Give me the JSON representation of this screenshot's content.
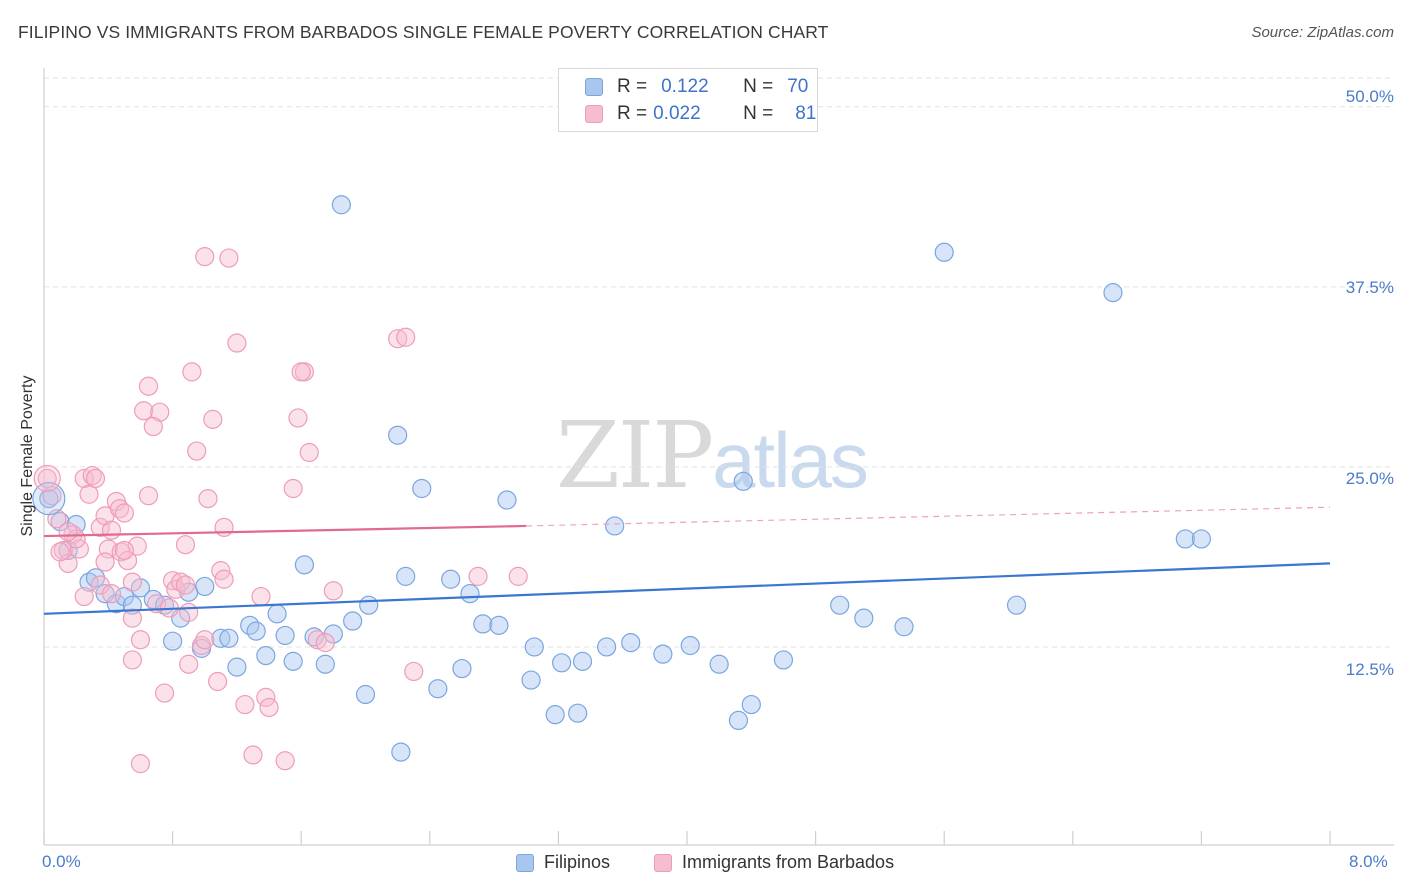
{
  "header": {
    "title": "FILIPINO VS IMMIGRANTS FROM BARBADOS SINGLE FEMALE POVERTY CORRELATION CHART",
    "source": "Source: ZipAtlas.com"
  },
  "watermark": {
    "zip": "ZIP",
    "atlas": "atlas"
  },
  "legend": {
    "rows": [
      {
        "r_label": "R =",
        "r_value": "0.122",
        "n_label": "N =",
        "n_value": "70",
        "color": "#a9c6ef"
      },
      {
        "r_label": "R =",
        "r_value": "0.022",
        "n_label": "N =",
        "n_value": "81",
        "color": "#f6bcd0"
      }
    ]
  },
  "bottom_legend": {
    "series1": "Filipinos",
    "series2": "Immigrants from Barbados"
  },
  "axes": {
    "ylabel": "Single Female Poverty",
    "yticks": [
      "50.0%",
      "37.5%",
      "25.0%",
      "12.5%"
    ],
    "xtick_left": "0.0%",
    "xtick_right": "8.0%"
  },
  "chart_data": {
    "type": "scatter",
    "title": "FILIPINO VS IMMIGRANTS FROM BARBADOS SINGLE FEMALE POVERTY CORRELATION CHART",
    "xlabel": "",
    "ylabel": "Single Female Poverty",
    "xlim": [
      0,
      8
    ],
    "ylim": [
      0,
      52
    ],
    "ytick_values": [
      12.5,
      25,
      37.5,
      50
    ],
    "xtick_values": [
      0,
      0.8,
      1.6,
      2.4,
      3.2,
      4.0,
      4.8,
      5.6,
      6.4,
      7.2,
      8.0
    ],
    "grid": true,
    "legend_placement": "top-center",
    "series": [
      {
        "name": "Filipinos",
        "color": "#7aa6e0",
        "fill": "#a9c6ef",
        "trend": {
          "x": [
            0,
            8
          ],
          "y": [
            14.8,
            18.3
          ],
          "style": "solid",
          "color": "#3a78d0"
        },
        "points": [
          [
            0.03,
            22.8
          ],
          [
            0.1,
            21.2
          ],
          [
            0.15,
            19.2
          ],
          [
            0.2,
            21.0
          ],
          [
            0.28,
            17.0
          ],
          [
            0.32,
            17.3
          ],
          [
            0.38,
            16.2
          ],
          [
            0.45,
            15.5
          ],
          [
            0.5,
            16.0
          ],
          [
            0.55,
            15.4
          ],
          [
            0.6,
            16.6
          ],
          [
            0.68,
            15.8
          ],
          [
            0.75,
            15.4
          ],
          [
            0.8,
            12.9
          ],
          [
            0.85,
            14.5
          ],
          [
            0.9,
            16.3
          ],
          [
            0.98,
            12.4
          ],
          [
            1.0,
            16.7
          ],
          [
            1.1,
            13.1
          ],
          [
            1.15,
            13.1
          ],
          [
            1.2,
            11.1
          ],
          [
            1.28,
            14.0
          ],
          [
            1.32,
            13.6
          ],
          [
            1.38,
            11.9
          ],
          [
            1.45,
            14.8
          ],
          [
            1.5,
            13.3
          ],
          [
            1.55,
            11.5
          ],
          [
            1.62,
            18.2
          ],
          [
            1.68,
            13.2
          ],
          [
            1.75,
            11.3
          ],
          [
            1.8,
            13.4
          ],
          [
            1.92,
            14.3
          ],
          [
            1.85,
            43.2
          ],
          [
            2.0,
            9.2
          ],
          [
            2.02,
            15.4
          ],
          [
            2.2,
            27.2
          ],
          [
            2.22,
            5.2
          ],
          [
            2.25,
            17.4
          ],
          [
            2.35,
            23.5
          ],
          [
            2.45,
            9.6
          ],
          [
            2.53,
            17.2
          ],
          [
            2.6,
            11.0
          ],
          [
            2.65,
            16.2
          ],
          [
            2.73,
            14.1
          ],
          [
            2.83,
            14.0
          ],
          [
            2.88,
            22.7
          ],
          [
            3.03,
            10.2
          ],
          [
            3.05,
            12.5
          ],
          [
            3.18,
            7.8
          ],
          [
            3.22,
            11.4
          ],
          [
            3.32,
            7.9
          ],
          [
            3.35,
            11.5
          ],
          [
            3.5,
            12.5
          ],
          [
            3.55,
            20.9
          ],
          [
            3.65,
            12.8
          ],
          [
            3.85,
            12.0
          ],
          [
            4.02,
            12.6
          ],
          [
            4.2,
            11.3
          ],
          [
            4.35,
            24.0
          ],
          [
            4.32,
            7.4
          ],
          [
            4.4,
            8.5
          ],
          [
            4.6,
            11.6
          ],
          [
            4.95,
            15.4
          ],
          [
            5.1,
            14.5
          ],
          [
            5.35,
            13.9
          ],
          [
            5.6,
            39.9
          ],
          [
            6.05,
            15.4
          ],
          [
            6.65,
            37.1
          ],
          [
            7.1,
            20.0
          ],
          [
            7.2,
            20.0
          ]
        ]
      },
      {
        "name": "Immigrants from Barbados",
        "color": "#ef9cb8",
        "fill": "#f6bcd0",
        "trend": {
          "x": [
            0,
            3.0
          ],
          "y": [
            20.2,
            20.9
          ],
          "style": "solid",
          "dash_extension": {
            "x": [
              3.0,
              8
            ],
            "y": [
              20.9,
              22.2
            ]
          },
          "color": "#e06a92"
        },
        "points": [
          [
            0.02,
            24.2
          ],
          [
            0.05,
            23.0
          ],
          [
            0.08,
            21.4
          ],
          [
            0.12,
            19.2
          ],
          [
            0.15,
            18.3
          ],
          [
            0.18,
            20.3
          ],
          [
            0.22,
            19.3
          ],
          [
            0.25,
            24.2
          ],
          [
            0.28,
            23.1
          ],
          [
            0.3,
            24.4
          ],
          [
            0.32,
            24.2
          ],
          [
            0.35,
            20.8
          ],
          [
            0.38,
            21.6
          ],
          [
            0.4,
            19.3
          ],
          [
            0.42,
            20.6
          ],
          [
            0.45,
            22.6
          ],
          [
            0.47,
            22.1
          ],
          [
            0.48,
            19.1
          ],
          [
            0.5,
            21.8
          ],
          [
            0.52,
            18.5
          ],
          [
            0.55,
            17.0
          ],
          [
            0.58,
            19.5
          ],
          [
            0.6,
            13.0
          ],
          [
            0.55,
            11.6
          ],
          [
            0.62,
            28.9
          ],
          [
            0.65,
            30.6
          ],
          [
            0.7,
            15.5
          ],
          [
            0.72,
            28.8
          ],
          [
            0.75,
            9.3
          ],
          [
            0.8,
            17.1
          ],
          [
            0.82,
            16.5
          ],
          [
            0.85,
            17.0
          ],
          [
            0.88,
            19.6
          ],
          [
            0.9,
            11.3
          ],
          [
            0.92,
            31.6
          ],
          [
            0.95,
            26.1
          ],
          [
            0.98,
            12.6
          ],
          [
            1.0,
            13.0
          ],
          [
            1.02,
            22.8
          ],
          [
            1.05,
            28.3
          ],
          [
            1.08,
            10.1
          ],
          [
            1.1,
            17.8
          ],
          [
            1.12,
            20.8
          ],
          [
            1.15,
            39.5
          ],
          [
            1.2,
            33.6
          ],
          [
            1.3,
            5.0
          ],
          [
            1.38,
            9.0
          ],
          [
            1.4,
            8.3
          ],
          [
            1.5,
            4.6
          ],
          [
            1.55,
            23.5
          ],
          [
            1.58,
            28.4
          ],
          [
            1.62,
            31.6
          ],
          [
            1.65,
            26.0
          ],
          [
            1.7,
            13.0
          ],
          [
            1.8,
            16.4
          ],
          [
            2.2,
            33.9
          ],
          [
            2.25,
            34.0
          ],
          [
            2.3,
            10.8
          ],
          [
            0.1,
            19.1
          ],
          [
            0.2,
            20.0
          ],
          [
            0.6,
            4.4
          ],
          [
            0.35,
            16.8
          ],
          [
            0.42,
            16.2
          ],
          [
            0.5,
            19.2
          ],
          [
            0.65,
            23.0
          ],
          [
            0.68,
            27.8
          ],
          [
            0.78,
            15.2
          ],
          [
            0.88,
            16.8
          ],
          [
            1.0,
            39.6
          ],
          [
            1.12,
            17.2
          ],
          [
            1.25,
            8.5
          ],
          [
            1.35,
            16.0
          ],
          [
            1.6,
            31.6
          ],
          [
            1.75,
            12.8
          ],
          [
            2.7,
            17.4
          ],
          [
            2.95,
            17.4
          ],
          [
            0.15,
            20.5
          ],
          [
            0.25,
            16.0
          ],
          [
            0.38,
            18.4
          ],
          [
            0.55,
            14.5
          ],
          [
            0.9,
            14.9
          ]
        ]
      }
    ]
  }
}
